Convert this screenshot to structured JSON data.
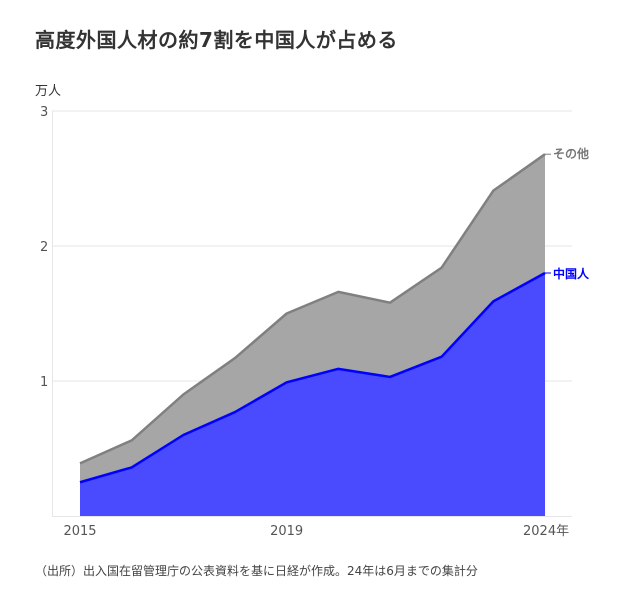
{
  "chart_data": {
    "type": "area",
    "stacked": true,
    "title": "高度外国人材の約7割を中国人が占める",
    "ylabel": "万人",
    "xlabel": "",
    "x": [
      2015,
      2016,
      2017,
      2018,
      2019,
      2020,
      2021,
      2022,
      2023,
      2024
    ],
    "x_tick_labels": [
      "2015",
      "2019",
      "2024年"
    ],
    "x_tick_values": [
      2015,
      2019,
      2024
    ],
    "y_ticks": [
      1,
      2,
      3
    ],
    "ylim": [
      0,
      3
    ],
    "grid": true,
    "series": [
      {
        "name": "中国人",
        "color": "#0000ff",
        "fill": "#4a4aff",
        "values": [
          0.25,
          0.36,
          0.6,
          0.77,
          0.99,
          1.09,
          1.03,
          1.18,
          1.59,
          1.8
        ]
      },
      {
        "name": "その他",
        "color": "#808080",
        "fill": "#a6a6a6",
        "values": [
          0.14,
          0.2,
          0.3,
          0.4,
          0.51,
          0.57,
          0.55,
          0.66,
          0.82,
          0.88
        ]
      }
    ],
    "totals": [
      0.39,
      0.56,
      0.9,
      1.17,
      1.5,
      1.66,
      1.58,
      1.84,
      2.41,
      2.68
    ],
    "source": "（出所）出入国在留管理庁の公表資料を基に日経が作成。24年は6月までの集計分"
  },
  "header": {
    "title": "高度外国人材の約7割を中国人が占める",
    "unit": "万人"
  },
  "labels": {
    "other": "その他",
    "china": "中国人"
  },
  "footer": {
    "source": "（出所）出入国在留管理庁の公表資料を基に日経が作成。24年は6月までの集計分"
  }
}
